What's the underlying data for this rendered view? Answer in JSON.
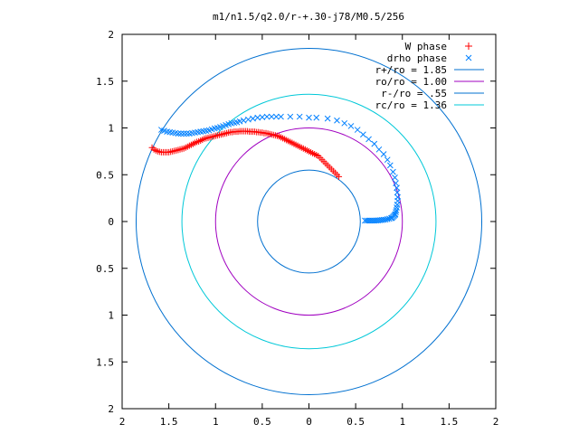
{
  "chart_data": {
    "type": "scatter",
    "title": "m1/n1.5/q2.0/r-+.30-j78/M0.5/256",
    "xlabel": "",
    "ylabel": "",
    "xlim": [
      -2,
      2
    ],
    "ylim": [
      -2,
      2
    ],
    "x_tick_labels": [
      "2",
      "1.5",
      "1",
      "0.5",
      "0",
      "0.5",
      "1",
      "1.5",
      "2"
    ],
    "y_tick_labels": [
      "2",
      "1.5",
      "1",
      "0.5",
      "0",
      "0.5",
      "1",
      "1.5",
      "2"
    ],
    "grid": false,
    "legend_position": "top-right",
    "series": [
      {
        "name": "W phase",
        "marker": "+",
        "color": "#ff0000",
        "x": [
          -1.68,
          -1.66,
          -1.64,
          -1.62,
          -1.6,
          -1.58,
          -1.56,
          -1.54,
          -1.52,
          -1.5,
          -1.48,
          -1.46,
          -1.44,
          -1.42,
          -1.4,
          -1.38,
          -1.36,
          -1.34,
          -1.32,
          -1.3,
          -1.28,
          -1.26,
          -1.24,
          -1.22,
          -1.2,
          -1.18,
          -1.16,
          -1.14,
          -1.12,
          -1.1,
          -1.08,
          -1.06,
          -1.04,
          -1.02,
          -1.0,
          -0.98,
          -0.96,
          -0.94,
          -0.92,
          -0.9,
          -0.88,
          -0.86,
          -0.84,
          -0.82,
          -0.8,
          -0.78,
          -0.76,
          -0.74,
          -0.72,
          -0.7,
          -0.68,
          -0.66,
          -0.64,
          -0.62,
          -0.6,
          -0.58,
          -0.56,
          -0.54,
          -0.52,
          -0.5,
          -0.48,
          -0.46,
          -0.44,
          -0.42,
          -0.4,
          -0.38,
          -0.36,
          -0.34,
          -0.32,
          -0.3,
          -0.28,
          -0.26,
          -0.24,
          -0.22,
          -0.2,
          -0.18,
          -0.16,
          -0.14,
          -0.12,
          -0.1,
          -0.08,
          -0.06,
          -0.04,
          -0.02,
          0.0,
          0.02,
          0.04,
          0.06,
          0.08,
          0.1,
          0.12,
          0.14,
          0.16,
          0.18,
          0.2,
          0.22,
          0.24,
          0.26,
          0.28,
          0.3,
          0.32
        ],
        "y": [
          0.79,
          0.77,
          0.76,
          0.75,
          0.745,
          0.74,
          0.74,
          0.74,
          0.74,
          0.74,
          0.745,
          0.75,
          0.755,
          0.76,
          0.765,
          0.77,
          0.775,
          0.78,
          0.79,
          0.8,
          0.81,
          0.82,
          0.83,
          0.84,
          0.85,
          0.855,
          0.865,
          0.875,
          0.885,
          0.89,
          0.895,
          0.9,
          0.905,
          0.91,
          0.915,
          0.92,
          0.925,
          0.93,
          0.935,
          0.94,
          0.945,
          0.95,
          0.955,
          0.955,
          0.96,
          0.96,
          0.96,
          0.965,
          0.965,
          0.965,
          0.965,
          0.965,
          0.96,
          0.96,
          0.96,
          0.96,
          0.955,
          0.955,
          0.95,
          0.95,
          0.945,
          0.945,
          0.94,
          0.935,
          0.93,
          0.925,
          0.92,
          0.915,
          0.91,
          0.9,
          0.89,
          0.88,
          0.87,
          0.86,
          0.85,
          0.84,
          0.83,
          0.82,
          0.81,
          0.8,
          0.79,
          0.78,
          0.77,
          0.76,
          0.75,
          0.74,
          0.73,
          0.72,
          0.71,
          0.7,
          0.68,
          0.66,
          0.64,
          0.62,
          0.6,
          0.58,
          0.56,
          0.54,
          0.52,
          0.5,
          0.48
        ]
      },
      {
        "name": "drho phase",
        "marker": "x",
        "color": "#0080ff",
        "x": [
          -1.58,
          -1.55,
          -1.52,
          -1.49,
          -1.46,
          -1.43,
          -1.4,
          -1.37,
          -1.34,
          -1.31,
          -1.28,
          -1.25,
          -1.22,
          -1.19,
          -1.16,
          -1.13,
          -1.1,
          -1.07,
          -1.04,
          -1.01,
          -0.98,
          -0.95,
          -0.92,
          -0.89,
          -0.86,
          -0.83,
          -0.8,
          -0.77,
          -0.74,
          -0.7,
          -0.65,
          -0.6,
          -0.55,
          -0.5,
          -0.45,
          -0.4,
          -0.35,
          -0.3,
          -0.2,
          -0.1,
          0.0,
          0.08,
          0.2,
          0.3,
          0.38,
          0.45,
          0.52,
          0.58,
          0.64,
          0.7,
          0.75,
          0.8,
          0.84,
          0.87,
          0.9,
          0.92,
          0.93,
          0.94,
          0.945,
          0.95,
          0.95,
          0.945,
          0.94,
          0.935,
          0.93,
          0.925,
          0.92,
          0.91,
          0.9,
          0.89,
          0.88,
          0.86,
          0.84,
          0.82,
          0.8,
          0.78,
          0.76,
          0.74,
          0.72,
          0.7,
          0.68,
          0.66,
          0.64,
          0.62,
          0.6
        ],
        "y": [
          0.98,
          0.97,
          0.96,
          0.955,
          0.95,
          0.945,
          0.94,
          0.94,
          0.94,
          0.94,
          0.94,
          0.945,
          0.95,
          0.955,
          0.96,
          0.965,
          0.97,
          0.975,
          0.985,
          0.995,
          1.0,
          1.01,
          1.02,
          1.03,
          1.04,
          1.05,
          1.055,
          1.06,
          1.07,
          1.08,
          1.09,
          1.1,
          1.11,
          1.115,
          1.12,
          1.12,
          1.12,
          1.12,
          1.12,
          1.12,
          1.11,
          1.11,
          1.1,
          1.08,
          1.05,
          1.02,
          0.98,
          0.93,
          0.88,
          0.83,
          0.77,
          0.72,
          0.66,
          0.6,
          0.53,
          0.47,
          0.41,
          0.36,
          0.31,
          0.26,
          0.22,
          0.18,
          0.15,
          0.12,
          0.1,
          0.08,
          0.07,
          0.06,
          0.05,
          0.04,
          0.035,
          0.03,
          0.025,
          0.02,
          0.018,
          0.016,
          0.014,
          0.012,
          0.011,
          0.01,
          0.01,
          0.01,
          0.01,
          0.01,
          0.01
        ]
      },
      {
        "name": "r+/ro = 1.85",
        "type": "circle",
        "radius": 1.85,
        "color": "#0070d0"
      },
      {
        "name": "ro/ro = 1.00",
        "type": "circle",
        "radius": 1.0,
        "color": "#a000c0"
      },
      {
        "name": "r-/ro = .55",
        "type": "circle",
        "radius": 0.55,
        "color": "#0070d0"
      },
      {
        "name": "rc/ro = 1.36",
        "type": "circle",
        "radius": 1.36,
        "color": "#00c8d8"
      }
    ]
  }
}
